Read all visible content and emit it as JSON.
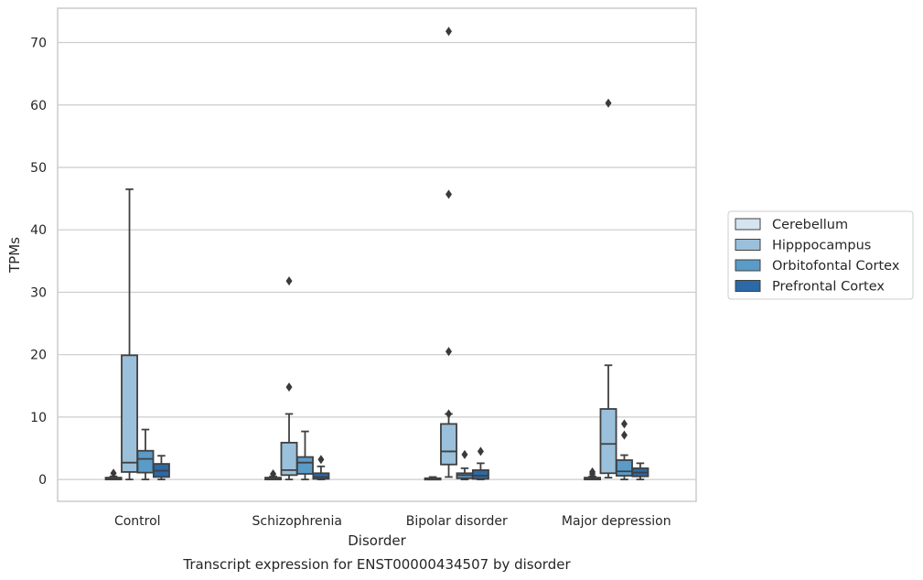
{
  "chart_data": {
    "type": "box",
    "categories": [
      "Control",
      "Schizophrenia",
      "Bipolar disorder",
      "Major depression"
    ],
    "xlabel": "Disorder",
    "ylabel": "TPMs",
    "caption": "Transcript expression for ENST00000434507 by disorder",
    "ylim": [
      -3.5,
      75.5
    ],
    "yticks": [
      0,
      10,
      20,
      30,
      40,
      50,
      60,
      70
    ],
    "grid": "horizontal",
    "legend_position": "right",
    "series": [
      {
        "name": "Cerebellum",
        "color": "#d6e4f0",
        "boxes": [
          {
            "whisker_low": 0,
            "q1": 0,
            "median": 0.1,
            "q3": 0.3,
            "whisker_high": 0.5,
            "outliers": [
              1.0
            ]
          },
          {
            "whisker_low": 0,
            "q1": 0,
            "median": 0.1,
            "q3": 0.3,
            "whisker_high": 0.5,
            "outliers": [
              0.9
            ]
          },
          {
            "whisker_low": 0,
            "q1": 0,
            "median": 0.1,
            "q3": 0.2,
            "whisker_high": 0.4,
            "outliers": []
          },
          {
            "whisker_low": 0,
            "q1": 0,
            "median": 0.1,
            "q3": 0.3,
            "whisker_high": 0.5,
            "outliers": [
              0.9,
              1.2
            ]
          }
        ]
      },
      {
        "name": "Hipppocampus",
        "color": "#9ac0db",
        "boxes": [
          {
            "whisker_low": 0,
            "q1": 1.2,
            "median": 2.7,
            "q3": 19.9,
            "whisker_high": 46.5,
            "outliers": []
          },
          {
            "whisker_low": 0,
            "q1": 0.7,
            "median": 1.5,
            "q3": 5.9,
            "whisker_high": 10.5,
            "outliers": [
              14.8,
              31.8
            ]
          },
          {
            "whisker_low": 0.4,
            "q1": 2.4,
            "median": 4.5,
            "q3": 8.9,
            "whisker_high": 10.5,
            "outliers": [
              10.5,
              20.5,
              45.7,
              71.8
            ]
          },
          {
            "whisker_low": 0.3,
            "q1": 1.0,
            "median": 5.7,
            "q3": 11.3,
            "whisker_high": 18.3,
            "outliers": [
              60.3
            ]
          }
        ]
      },
      {
        "name": "Orbitofontal Cortex",
        "color": "#5a9bc8",
        "boxes": [
          {
            "whisker_low": 0,
            "q1": 1.1,
            "median": 3.3,
            "q3": 4.6,
            "whisker_high": 8.0,
            "outliers": []
          },
          {
            "whisker_low": 0,
            "q1": 0.9,
            "median": 2.7,
            "q3": 3.6,
            "whisker_high": 7.7,
            "outliers": []
          },
          {
            "whisker_low": 0,
            "q1": 0.2,
            "median": 0.7,
            "q3": 1.0,
            "whisker_high": 1.8,
            "outliers": [
              4.0
            ]
          },
          {
            "whisker_low": 0,
            "q1": 0.6,
            "median": 1.3,
            "q3": 3.1,
            "whisker_high": 3.9,
            "outliers": [
              7.1,
              8.9
            ]
          }
        ]
      },
      {
        "name": "Prefrontal Cortex",
        "color": "#2b69a8",
        "boxes": [
          {
            "whisker_low": 0,
            "q1": 0.4,
            "median": 1.4,
            "q3": 2.5,
            "whisker_high": 3.8,
            "outliers": []
          },
          {
            "whisker_low": 0,
            "q1": 0.1,
            "median": 0.4,
            "q3": 1.0,
            "whisker_high": 2.1,
            "outliers": [
              3.2
            ]
          },
          {
            "whisker_low": 0,
            "q1": 0.1,
            "median": 0.6,
            "q3": 1.5,
            "whisker_high": 2.6,
            "outliers": [
              4.5
            ]
          },
          {
            "whisker_low": 0,
            "q1": 0.5,
            "median": 1.1,
            "q3": 1.8,
            "whisker_high": 2.6,
            "outliers": []
          }
        ]
      }
    ]
  }
}
